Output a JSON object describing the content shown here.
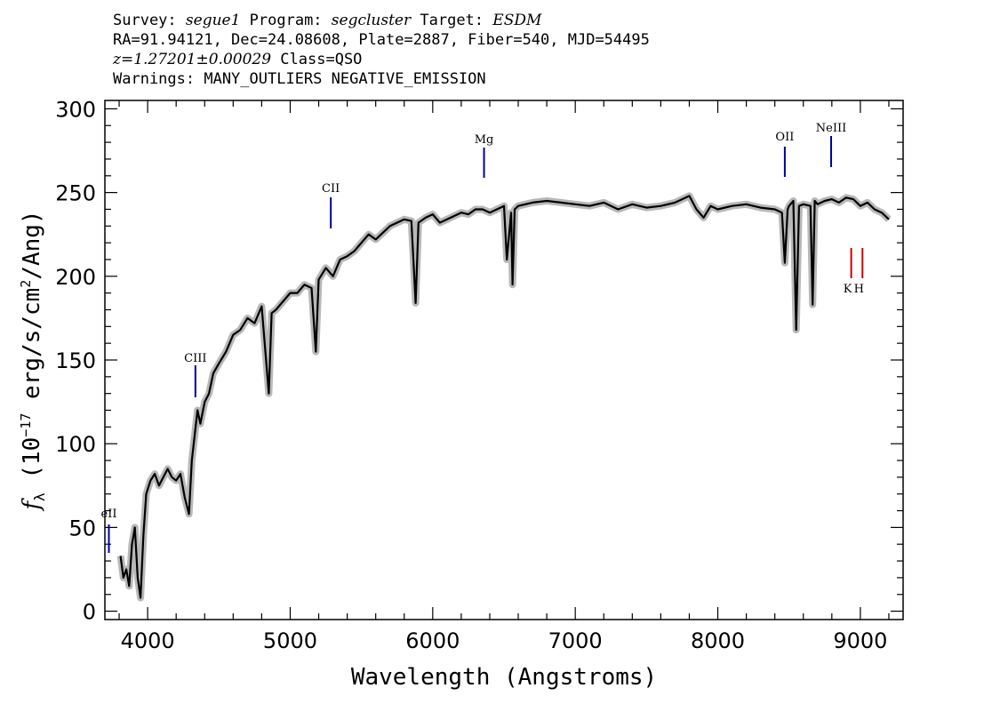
{
  "header": {
    "line1": {
      "survey_label": "Survey:",
      "survey": "segue1",
      "program_label": "Program:",
      "program": "segcluster",
      "target_label": "Target:",
      "target": "ESDM"
    },
    "line2": "RA=91.94121, Dec=24.08608, Plate=2887, Fiber=540, MJD=54495",
    "line3": {
      "z": "z=1.27201±0.00029",
      "class": "Class=QSO"
    },
    "line4": "Warnings: MANY_OUTLIERS NEGATIVE_EMISSION"
  },
  "chart_data": {
    "type": "line",
    "xlabel": "Wavelength (Angstroms)",
    "ylabel": {
      "prefix": "f",
      "sub": "λ",
      "unit_a": " (10",
      "exp1": "−17",
      "unit_b": " erg/s/cm",
      "exp2": "2",
      "unit_c": "/Ang)"
    },
    "xlim": [
      3700,
      9300
    ],
    "ylim": [
      -5,
      305
    ],
    "xticks": [
      4000,
      5000,
      6000,
      7000,
      8000,
      9000
    ],
    "yticks": [
      0,
      50,
      100,
      150,
      200,
      250,
      300
    ],
    "series": [
      {
        "color": "#000000",
        "error_color": "#b8b8b8",
        "x": [
          3810,
          3830,
          3850,
          3870,
          3890,
          3910,
          3930,
          3950,
          3970,
          3990,
          4020,
          4050,
          4080,
          4110,
          4140,
          4170,
          4200,
          4230,
          4260,
          4290,
          4310,
          4330,
          4350,
          4370,
          4400,
          4430,
          4460,
          4500,
          4550,
          4600,
          4650,
          4700,
          4750,
          4800,
          4850,
          4870,
          4900,
          4950,
          5000,
          5050,
          5100,
          5150,
          5180,
          5200,
          5250,
          5300,
          5350,
          5400,
          5450,
          5500,
          5550,
          5600,
          5650,
          5700,
          5750,
          5800,
          5850,
          5880,
          5900,
          5950,
          6000,
          6050,
          6100,
          6150,
          6200,
          6250,
          6300,
          6350,
          6400,
          6450,
          6500,
          6520,
          6550,
          6560,
          6575,
          6600,
          6650,
          6700,
          6800,
          6900,
          7000,
          7100,
          7200,
          7300,
          7400,
          7500,
          7600,
          7700,
          7800,
          7850,
          7900,
          7950,
          8000,
          8100,
          8200,
          8300,
          8400,
          8450,
          8470,
          8490,
          8500,
          8530,
          8550,
          8570,
          8600,
          8650,
          8665,
          8680,
          8700,
          8750,
          8800,
          8850,
          8900,
          8950,
          9000,
          9050,
          9100,
          9150,
          9200
        ],
        "y": [
          33,
          20,
          25,
          15,
          40,
          50,
          20,
          8,
          45,
          70,
          78,
          82,
          75,
          80,
          85,
          80,
          78,
          82,
          68,
          58,
          90,
          105,
          120,
          112,
          125,
          130,
          142,
          148,
          155,
          165,
          168,
          175,
          172,
          182,
          130,
          178,
          180,
          185,
          190,
          190,
          195,
          193,
          155,
          198,
          205,
          200,
          210,
          212,
          215,
          220,
          225,
          222,
          226,
          230,
          232,
          234,
          233,
          184,
          232,
          235,
          237,
          232,
          234,
          236,
          238,
          237,
          240,
          240,
          238,
          240,
          242,
          210,
          238,
          195,
          240,
          242,
          243,
          244,
          245,
          244,
          243,
          242,
          244,
          240,
          243,
          241,
          242,
          244,
          248,
          240,
          235,
          242,
          240,
          242,
          243,
          241,
          240,
          238,
          208,
          240,
          242,
          245,
          168,
          242,
          243,
          242,
          183,
          245,
          243,
          245,
          246,
          244,
          247,
          246,
          242,
          244,
          240,
          238,
          234
        ]
      }
    ],
    "emission_lines": [
      {
        "label": "eII",
        "x": 3728,
        "color": "#0000a0"
      },
      {
        "label": "CIII",
        "x": 4335,
        "color": "#0000a0"
      },
      {
        "label": "CII",
        "x": 5285,
        "color": "#0000a0"
      },
      {
        "label": "Mg",
        "x": 6360,
        "color": "#0000a0"
      },
      {
        "label": "OII",
        "x": 8470,
        "color": "#0000a0"
      },
      {
        "label": "NeIII",
        "x": 8795,
        "color": "#0000a0"
      }
    ],
    "absorption_lines": [
      {
        "label": "K",
        "x": 8936,
        "color": "#cc0000"
      },
      {
        "label": "H",
        "x": 9015,
        "color": "#cc0000"
      }
    ]
  }
}
